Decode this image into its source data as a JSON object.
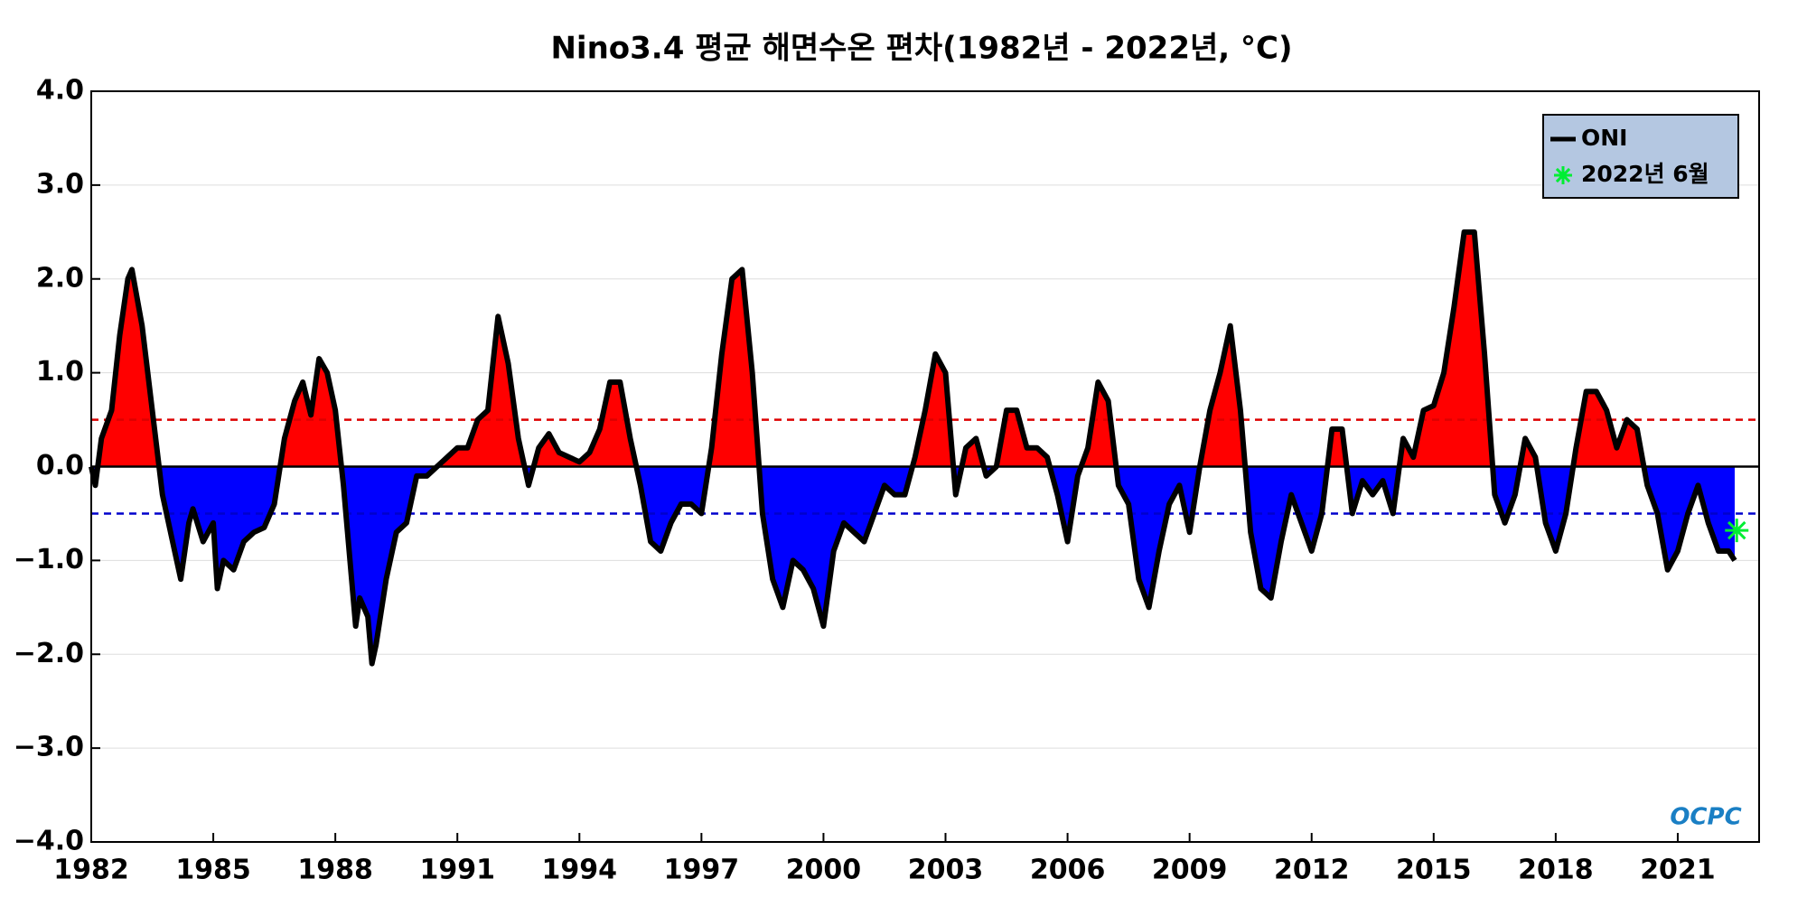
{
  "chart_data": {
    "type": "area-line",
    "title": "Nino3.4 평균 해면수온 편차(1982년 - 2022년, °C)",
    "xlim": [
      1982,
      2023
    ],
    "xticks": [
      1982,
      1985,
      1988,
      1991,
      1994,
      1997,
      2000,
      2003,
      2006,
      2009,
      2012,
      2015,
      2018,
      2021
    ],
    "ylim": [
      -4,
      4
    ],
    "yticks": [
      {
        "value": -4,
        "label": "−4.0"
      },
      {
        "value": -3,
        "label": "−3.0"
      },
      {
        "value": -2,
        "label": "−2.0"
      },
      {
        "value": -1,
        "label": "−1.0"
      },
      {
        "value": 0,
        "label": "0.0"
      },
      {
        "value": 1,
        "label": "1.0"
      },
      {
        "value": 2,
        "label": "2.0"
      },
      {
        "value": 3,
        "label": "3.0"
      },
      {
        "value": 4,
        "label": "4.0"
      }
    ],
    "grid": true,
    "positive_color": "#ff0000",
    "negative_color": "#0000ff",
    "thresholds": [
      {
        "value": 0.5,
        "color": "#dd0000"
      },
      {
        "value": -0.5,
        "color": "#0000cc"
      }
    ],
    "legend_position": "upper right",
    "logo": "OCPC",
    "series": [
      {
        "name": "ONI",
        "color": "#000000",
        "x": [
          1982.0,
          1982.1,
          1982.25,
          1982.5,
          1982.7,
          1982.9,
          1983.0,
          1983.25,
          1983.5,
          1983.75,
          1984.0,
          1984.2,
          1984.4,
          1984.5,
          1984.75,
          1985.0,
          1985.1,
          1985.25,
          1985.5,
          1985.75,
          1986.0,
          1986.25,
          1986.5,
          1986.75,
          1987.0,
          1987.2,
          1987.4,
          1987.6,
          1987.8,
          1988.0,
          1988.2,
          1988.4,
          1988.5,
          1988.6,
          1988.8,
          1988.9,
          1989.0,
          1989.25,
          1989.5,
          1989.75,
          1990.0,
          1990.25,
          1990.5,
          1990.75,
          1991.0,
          1991.25,
          1991.5,
          1991.75,
          1992.0,
          1992.25,
          1992.5,
          1992.75,
          1993.0,
          1993.25,
          1993.5,
          1993.75,
          1994.0,
          1994.25,
          1994.5,
          1994.75,
          1995.0,
          1995.25,
          1995.5,
          1995.75,
          1996.0,
          1996.25,
          1996.5,
          1996.75,
          1997.0,
          1997.25,
          1997.5,
          1997.75,
          1998.0,
          1998.25,
          1998.5,
          1998.75,
          1999.0,
          1999.25,
          1999.5,
          1999.75,
          2000.0,
          2000.25,
          2000.5,
          2000.75,
          2001.0,
          2001.25,
          2001.5,
          2001.75,
          2002.0,
          2002.25,
          2002.5,
          2002.75,
          2003.0,
          2003.25,
          2003.5,
          2003.75,
          2004.0,
          2004.25,
          2004.5,
          2004.75,
          2005.0,
          2005.25,
          2005.5,
          2005.75,
          2006.0,
          2006.25,
          2006.5,
          2006.75,
          2007.0,
          2007.25,
          2007.5,
          2007.75,
          2008.0,
          2008.25,
          2008.5,
          2008.75,
          2009.0,
          2009.25,
          2009.5,
          2009.75,
          2010.0,
          2010.25,
          2010.5,
          2010.75,
          2011.0,
          2011.25,
          2011.5,
          2011.75,
          2012.0,
          2012.25,
          2012.5,
          2012.75,
          2013.0,
          2013.25,
          2013.5,
          2013.75,
          2014.0,
          2014.25,
          2014.5,
          2014.75,
          2015.0,
          2015.25,
          2015.5,
          2015.75,
          2016.0,
          2016.25,
          2016.5,
          2016.75,
          2017.0,
          2017.25,
          2017.5,
          2017.75,
          2018.0,
          2018.25,
          2018.5,
          2018.75,
          2019.0,
          2019.25,
          2019.5,
          2019.75,
          2020.0,
          2020.25,
          2020.5,
          2020.75,
          2021.0,
          2021.25,
          2021.5,
          2021.75,
          2022.0,
          2022.25,
          2022.4
        ],
        "values": [
          0.0,
          -0.2,
          0.3,
          0.6,
          1.4,
          2.0,
          2.1,
          1.5,
          0.6,
          -0.3,
          -0.8,
          -1.2,
          -0.6,
          -0.45,
          -0.8,
          -0.6,
          -1.3,
          -1.0,
          -1.1,
          -0.8,
          -0.7,
          -0.65,
          -0.4,
          0.3,
          0.7,
          0.9,
          0.55,
          1.15,
          1.0,
          0.6,
          -0.2,
          -1.2,
          -1.7,
          -1.4,
          -1.6,
          -2.1,
          -1.9,
          -1.2,
          -0.7,
          -0.6,
          -0.1,
          -0.1,
          0.0,
          0.1,
          0.2,
          0.2,
          0.5,
          0.6,
          1.6,
          1.1,
          0.3,
          -0.2,
          0.2,
          0.35,
          0.15,
          0.1,
          0.05,
          0.15,
          0.4,
          0.9,
          0.9,
          0.3,
          -0.2,
          -0.8,
          -0.9,
          -0.6,
          -0.4,
          -0.4,
          -0.5,
          0.2,
          1.2,
          2.0,
          2.1,
          1.0,
          -0.5,
          -1.2,
          -1.5,
          -1.0,
          -1.1,
          -1.3,
          -1.7,
          -0.9,
          -0.6,
          -0.7,
          -0.8,
          -0.5,
          -0.2,
          -0.3,
          -0.3,
          0.1,
          0.6,
          1.2,
          1.0,
          -0.3,
          0.2,
          0.3,
          -0.1,
          0.0,
          0.6,
          0.6,
          0.2,
          0.2,
          0.1,
          -0.3,
          -0.8,
          -0.1,
          0.2,
          0.9,
          0.7,
          -0.2,
          -0.4,
          -1.2,
          -1.5,
          -0.9,
          -0.4,
          -0.2,
          -0.7,
          0.0,
          0.6,
          1.0,
          1.5,
          0.6,
          -0.7,
          -1.3,
          -1.4,
          -0.8,
          -0.3,
          -0.6,
          -0.9,
          -0.5,
          0.4,
          0.4,
          -0.5,
          -0.15,
          -0.3,
          -0.15,
          -0.5,
          0.3,
          0.1,
          0.6,
          0.65,
          1.0,
          1.7,
          2.5,
          2.5,
          1.2,
          -0.3,
          -0.6,
          -0.3,
          0.3,
          0.1,
          -0.6,
          -0.9,
          -0.5,
          0.2,
          0.8,
          0.8,
          0.6,
          0.2,
          0.5,
          0.4,
          -0.2,
          -0.5,
          -1.1,
          -0.9,
          -0.5,
          -0.2,
          -0.6,
          -0.9,
          -0.9,
          -1.0
        ]
      }
    ],
    "marker": {
      "name": "2022년 6월",
      "x": 2022.45,
      "value": -0.68,
      "color": "#00ee33"
    }
  }
}
